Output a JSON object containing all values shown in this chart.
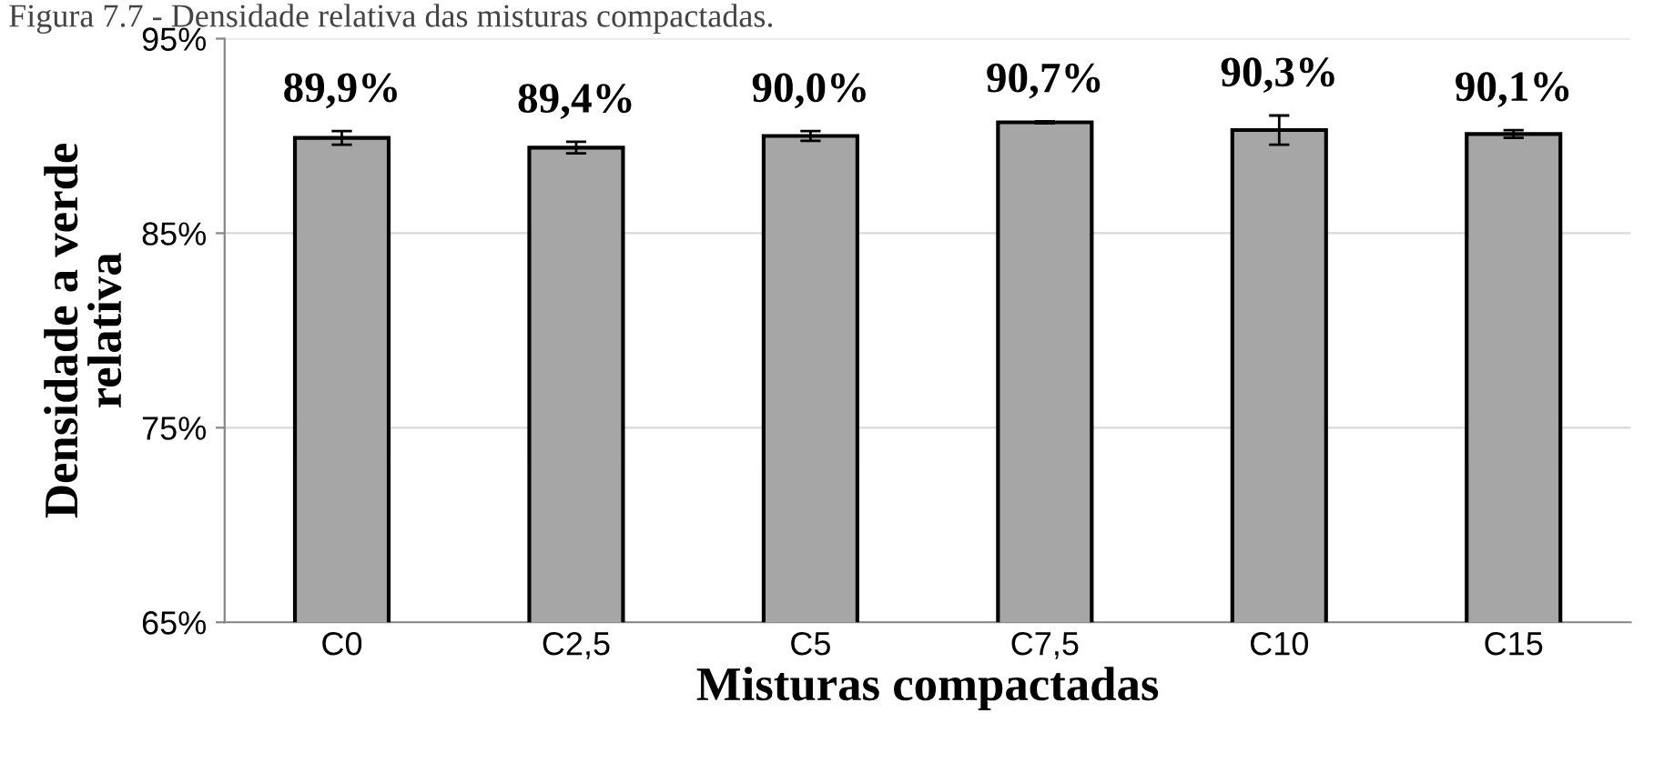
{
  "chart_data": {
    "type": "bar",
    "title": "Figura 7.7 - Densidade relativa das misturas compactadas.",
    "xlabel": "Misturas compactadas",
    "ylabel": "Densidade a verde\nrelativa",
    "categories": [
      "C0",
      "C2,5",
      "C5",
      "C7,5",
      "C10",
      "C15"
    ],
    "values": [
      89.9,
      89.4,
      90.0,
      90.7,
      90.3,
      90.1
    ],
    "errors": [
      0.35,
      0.3,
      0.25,
      0.05,
      0.75,
      0.2
    ],
    "value_labels": [
      "89,9%",
      "89,4%",
      "90,0%",
      "90,7%",
      "90,3%",
      "90,1%"
    ],
    "color": "#a6a6a6",
    "ylim": [
      65,
      95
    ],
    "yticks": [
      {
        "value": 65,
        "label": "65%"
      },
      {
        "value": 75,
        "label": "75%"
      },
      {
        "value": 85,
        "label": "85%"
      },
      {
        "value": 95,
        "label": "95%"
      }
    ],
    "grid": "y"
  }
}
